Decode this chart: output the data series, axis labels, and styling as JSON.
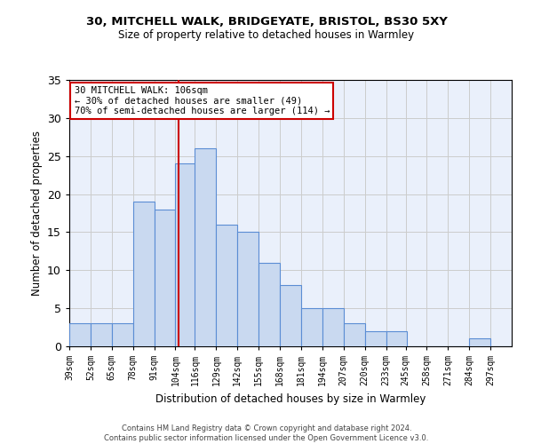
{
  "title_line1": "30, MITCHELL WALK, BRIDGEYATE, BRISTOL, BS30 5XY",
  "title_line2": "Size of property relative to detached houses in Warmley",
  "xlabel": "Distribution of detached houses by size in Warmley",
  "ylabel": "Number of detached properties",
  "bin_labels": [
    "39sqm",
    "52sqm",
    "65sqm",
    "78sqm",
    "91sqm",
    "104sqm",
    "116sqm",
    "129sqm",
    "142sqm",
    "155sqm",
    "168sqm",
    "181sqm",
    "194sqm",
    "207sqm",
    "220sqm",
    "233sqm",
    "245sqm",
    "258sqm",
    "271sqm",
    "284sqm",
    "297sqm"
  ],
  "bin_edges": [
    39,
    52,
    65,
    78,
    91,
    104,
    116,
    129,
    142,
    155,
    168,
    181,
    194,
    207,
    220,
    233,
    245,
    258,
    271,
    284,
    297
  ],
  "counts": [
    3,
    3,
    3,
    19,
    18,
    24,
    26,
    16,
    15,
    11,
    8,
    5,
    5,
    3,
    2,
    2,
    0,
    0,
    0,
    1,
    0
  ],
  "bar_facecolor": "#c9d9f0",
  "bar_edgecolor": "#5b8dd4",
  "grid_color": "#cccccc",
  "bg_color": "#eaf0fb",
  "vline_x": 106,
  "vline_color": "#cc0000",
  "annotation_text": "30 MITCHELL WALK: 106sqm\n← 30% of detached houses are smaller (49)\n70% of semi-detached houses are larger (114) →",
  "annotation_box_edgecolor": "#cc0000",
  "annotation_box_facecolor": "#ffffff",
  "ylim": [
    0,
    35
  ],
  "yticks": [
    0,
    5,
    10,
    15,
    20,
    25,
    30,
    35
  ],
  "footer_line1": "Contains HM Land Registry data © Crown copyright and database right 2024.",
  "footer_line2": "Contains public sector information licensed under the Open Government Licence v3.0."
}
